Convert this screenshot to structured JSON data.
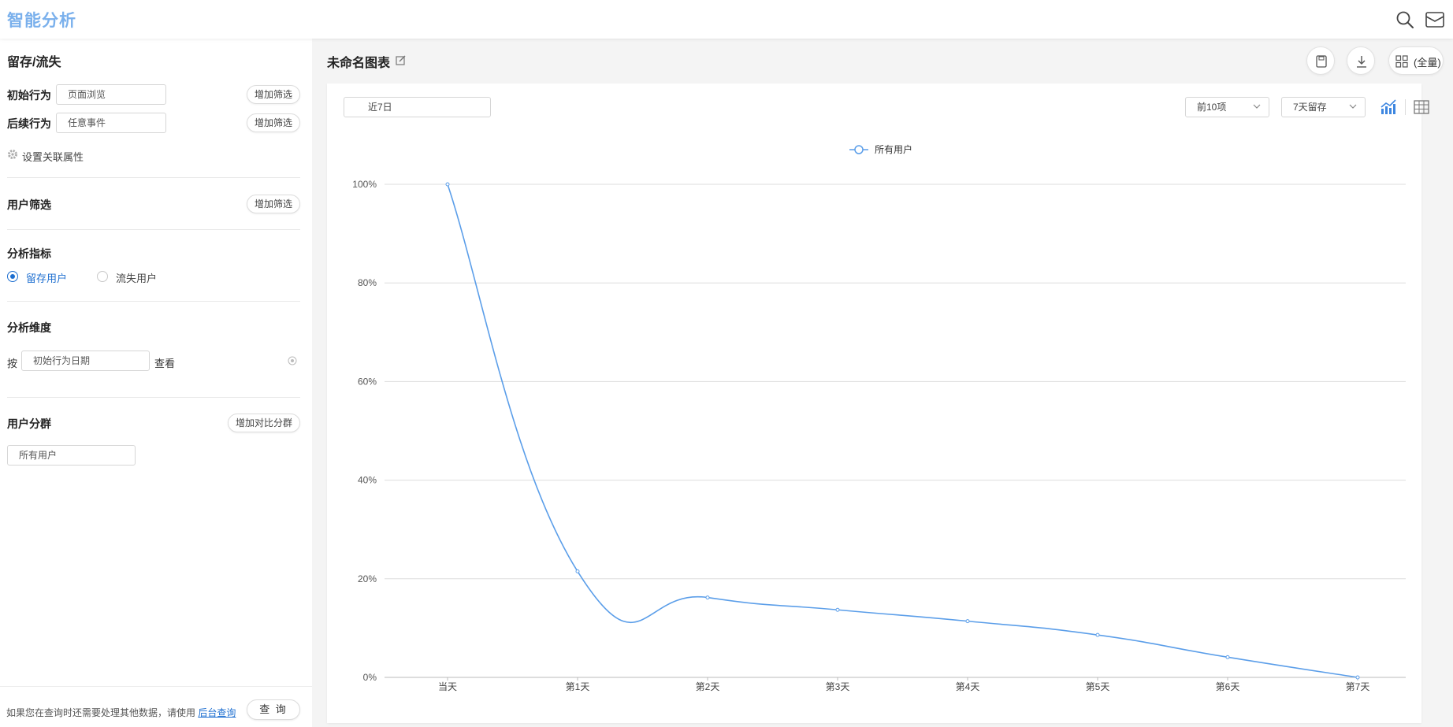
{
  "app": {
    "title": "智能分析"
  },
  "header": {
    "search_icon": "search-icon",
    "inbox_icon": "inbox-icon"
  },
  "sidebar": {
    "section_title": "留存/流失",
    "initial_behavior": {
      "label": "初始行为",
      "value": "页面浏览",
      "filter_button": "增加筛选"
    },
    "follow_behavior": {
      "label": "后续行为",
      "value": "任意事件",
      "filter_button": "增加筛选"
    },
    "association": {
      "label": "设置关联属性"
    },
    "user_filter": {
      "title": "用户筛选",
      "filter_button": "增加筛选"
    },
    "metrics": {
      "title": "分析指标",
      "options": [
        {
          "label": "留存用户",
          "selected": true
        },
        {
          "label": "流失用户",
          "selected": false
        }
      ]
    },
    "dimension": {
      "title": "分析维度",
      "prefix": "按",
      "value": "初始行为日期",
      "suffix": "查看"
    },
    "segment": {
      "title": "用户分群",
      "compare_button": "增加对比分群",
      "value": "所有用户"
    },
    "footer": {
      "note": "如果您在查询时还需要处理其他数据，请使用",
      "link": "后台查询",
      "query_button": "查 询"
    }
  },
  "main": {
    "title": "未命名图表",
    "buttons": {
      "save_icon": "save-icon",
      "download_icon": "download-icon",
      "layout_label": "(全量)"
    },
    "date_range": "近7日",
    "top_select": "前10项",
    "retention_select": "7天留存",
    "accent": "#5b9ee9"
  },
  "chart_data": {
    "type": "line",
    "categories": [
      "当天",
      "第1天",
      "第2天",
      "第3天",
      "第4天",
      "第5天",
      "第6天",
      "第7天"
    ],
    "series": [
      {
        "name": "所有用户",
        "values": [
          100,
          21.5,
          16.2,
          13.7,
          11.4,
          8.6,
          4.1,
          0
        ]
      }
    ],
    "ylim": [
      0,
      100
    ],
    "yticks": [
      "0%",
      "20%",
      "40%",
      "60%",
      "80%",
      "100%"
    ],
    "grid": true,
    "legend": "top-center",
    "smooth": true
  }
}
